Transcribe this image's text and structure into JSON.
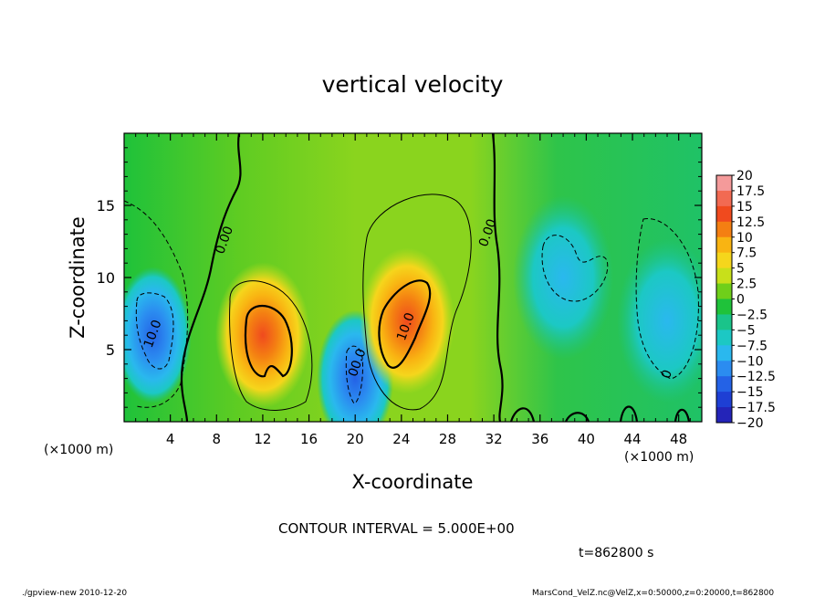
{
  "chart_data": {
    "type": "heatmap",
    "title": "vertical velocity",
    "xlabel": "X-coordinate",
    "ylabel": "Z-coordinate",
    "x_unit_label_left": "(×1000 m)",
    "x_unit_label_right": "(×1000 m)",
    "xlim": [
      0,
      50
    ],
    "ylim": [
      0,
      20
    ],
    "xticks": [
      4,
      8,
      12,
      16,
      20,
      24,
      28,
      32,
      36,
      40,
      44,
      48
    ],
    "yticks": [
      5,
      10,
      15
    ],
    "colorbar": {
      "levels": [
        "20",
        "17.5",
        "15",
        "12.5",
        "10",
        "7.5",
        "5",
        "2.5",
        "0",
        "−2.5",
        "−5",
        "−7.5",
        "−10",
        "−12.5",
        "−15",
        "−17.5",
        "−20"
      ],
      "colors": [
        "#f49a9a",
        "#f26a52",
        "#f04a1e",
        "#f47f12",
        "#f9b412",
        "#f5d61c",
        "#c8e01a",
        "#6fcf1a",
        "#1fc23a",
        "#1ac48a",
        "#1cc8c4",
        "#2ab8ee",
        "#2b8cf0",
        "#2462e6",
        "#1e3fd4",
        "#2424b8",
        "#6a28b8"
      ]
    },
    "features": [
      {
        "x": 2.5,
        "z": 6,
        "w": -12
      },
      {
        "x": 12,
        "z": 6,
        "w": 13
      },
      {
        "x": 20,
        "z": 3,
        "w": -9
      },
      {
        "x": 24.5,
        "z": 7,
        "w": 13
      },
      {
        "x": 38,
        "z": 10,
        "w": -5
      },
      {
        "x": 47,
        "z": 7,
        "w": -6
      }
    ],
    "contour_labels": [
      {
        "text": "0.00",
        "x": 9.0,
        "z": 12.5
      },
      {
        "text": "0.00",
        "x": 31.8,
        "z": 13.0
      },
      {
        "text": "10.0",
        "x": 2.8,
        "z": 6.0
      },
      {
        "text": "10.0",
        "x": 24.7,
        "z": 6.5
      },
      {
        "text": "00.0",
        "x": 20.5,
        "z": 4.0
      },
      {
        "text": "0",
        "x": 47.3,
        "z": 3.2
      }
    ]
  },
  "contour_interval_text": "CONTOUR INTERVAL = 5.000E+00",
  "time_text": "t=862800 s",
  "footer_left": "./gpview-new 2010-12-20",
  "footer_right": "MarsCond_VelZ.nc@VelZ,x=0:50000,z=0:20000,t=862800"
}
